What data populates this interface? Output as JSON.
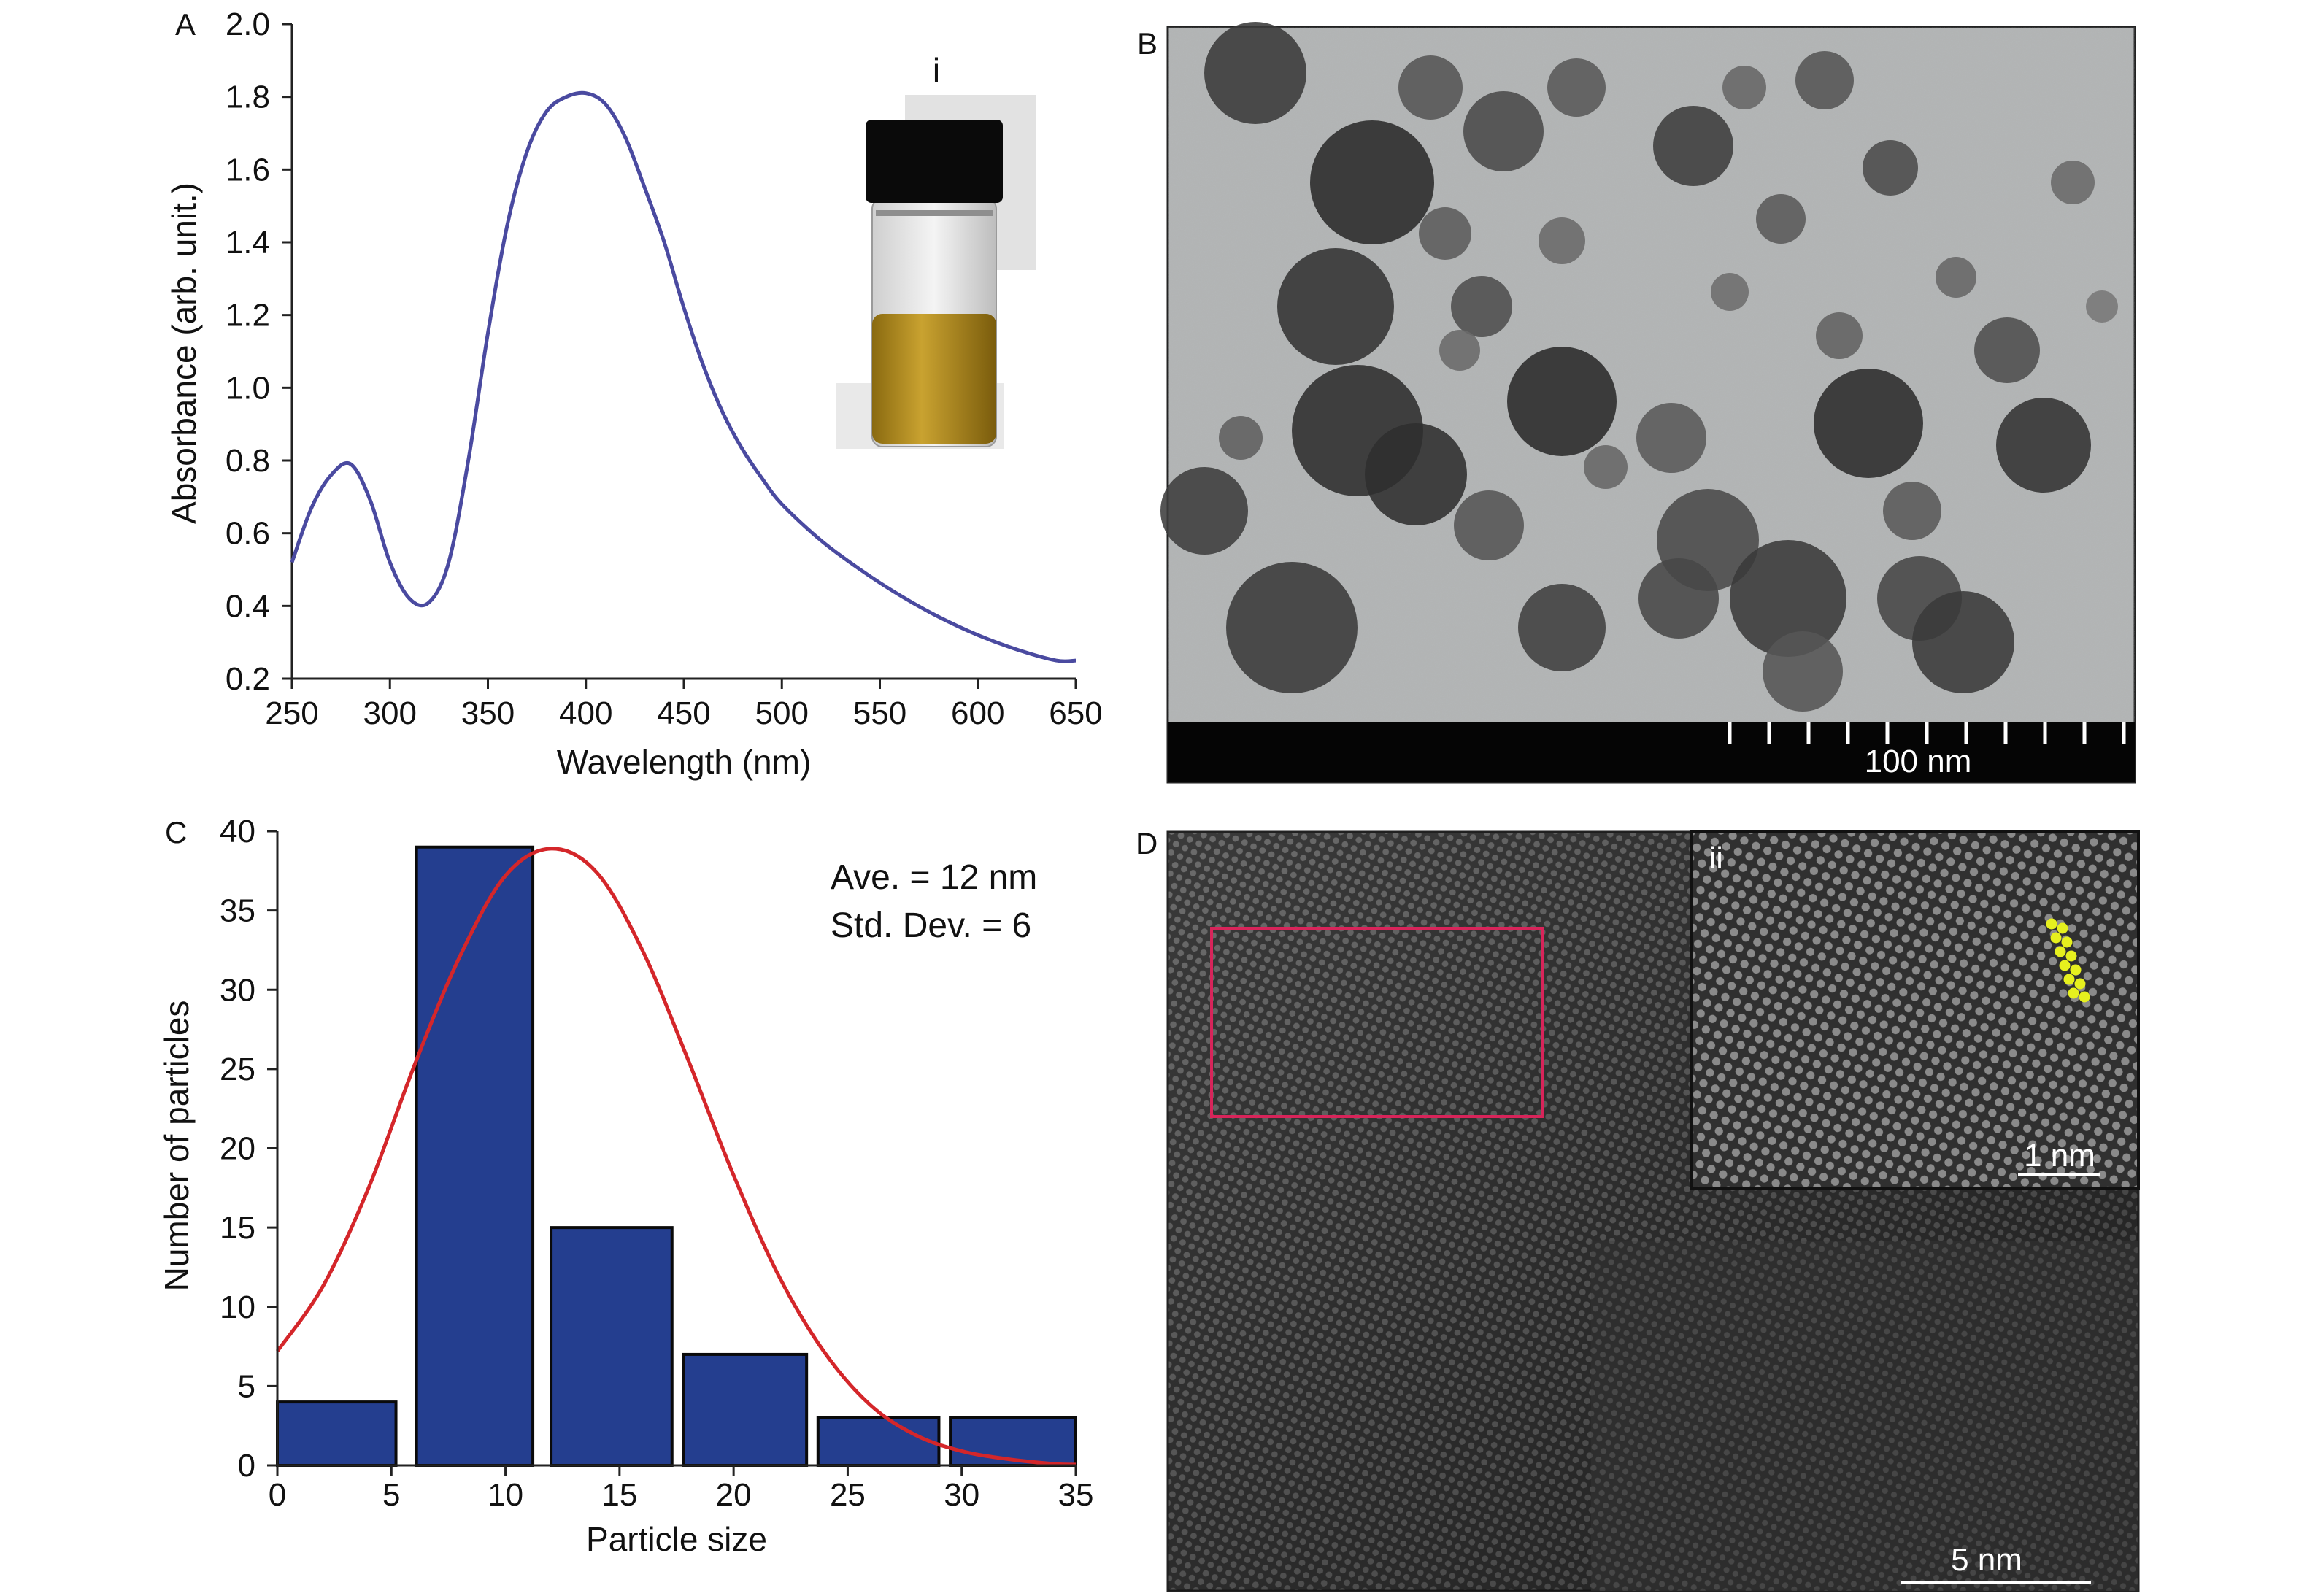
{
  "panels": {
    "A": {
      "letter": "A",
      "inset_label": "i",
      "chart_data": {
        "type": "line",
        "xlabel": "Wavelength (nm)",
        "ylabel": "Absorbance (arb. unit.)",
        "xlim": [
          250,
          650
        ],
        "ylim": [
          0.2,
          2.0
        ],
        "xticks": [
          "250",
          "300",
          "350",
          "400",
          "450",
          "500",
          "550",
          "600",
          "650"
        ],
        "yticks": [
          "0.2",
          "0.4",
          "0.6",
          "0.8",
          "1.0",
          "1.2",
          "1.4",
          "1.6",
          "1.8",
          "2.0"
        ],
        "series": [
          {
            "color": "#4a4aa0",
            "x": [
              250,
              260,
              270,
              280,
              290,
              300,
              310,
              320,
              330,
              340,
              350,
              360,
              370,
              380,
              390,
              400,
              410,
              420,
              430,
              440,
              450,
              460,
              470,
              480,
              490,
              500,
              520,
              540,
              560,
              580,
              600,
              620,
              640,
              650
            ],
            "y": [
              0.52,
              0.67,
              0.76,
              0.79,
              0.69,
              0.52,
              0.42,
              0.41,
              0.52,
              0.8,
              1.15,
              1.45,
              1.65,
              1.76,
              1.8,
              1.81,
              1.78,
              1.69,
              1.55,
              1.4,
              1.22,
              1.06,
              0.93,
              0.83,
              0.75,
              0.68,
              0.58,
              0.5,
              0.43,
              0.37,
              0.32,
              0.28,
              0.25,
              0.25
            ]
          }
        ],
        "legend": "none",
        "grid": false
      }
    },
    "B": {
      "letter": "B",
      "scale_bar": "100 nm"
    },
    "C": {
      "letter": "C",
      "annotations": [
        "Ave. = 12 nm",
        "Std. Dev. = 6"
      ],
      "chart_data": {
        "type": "bar",
        "xlabel": "Particle size",
        "ylabel": "Number of particles",
        "xlim": [
          0,
          35
        ],
        "ylim": [
          0,
          40
        ],
        "xticks": [
          "0",
          "5",
          "10",
          "15",
          "20",
          "25",
          "30",
          "35"
        ],
        "yticks": [
          "0",
          "5",
          "10",
          "15",
          "20",
          "25",
          "30",
          "35",
          "40"
        ],
        "bins": [
          [
            0,
            5.2
          ],
          [
            6.1,
            11.2
          ],
          [
            12.0,
            17.3
          ],
          [
            17.8,
            23.2
          ],
          [
            23.7,
            29.0
          ],
          [
            29.5,
            35.0
          ]
        ],
        "values": [
          4,
          39,
          15,
          7,
          3,
          3
        ],
        "bar_color": "#243e8f",
        "fit": {
          "type": "gaussian",
          "color": "#d4262a",
          "x": [
            0,
            2,
            4,
            6,
            8,
            10,
            12,
            14,
            16,
            18,
            20,
            22,
            24,
            26,
            28,
            30,
            32,
            34,
            35
          ],
          "y": [
            7.2,
            11.3,
            17.5,
            25.2,
            32.1,
            37.2,
            38.9,
            37.4,
            32.5,
            25.6,
            18.3,
            11.9,
            7.1,
            3.8,
            1.9,
            0.9,
            0.4,
            0.1,
            0.05
          ]
        },
        "legend": "none",
        "grid": false
      }
    },
    "D": {
      "letter": "D",
      "inset_label": "ii",
      "inset_scale_bar": "1 nm",
      "scale_bar": "5 nm",
      "highlight_color": "#d8245a",
      "atom_marker_color": "#e6f01e"
    }
  }
}
